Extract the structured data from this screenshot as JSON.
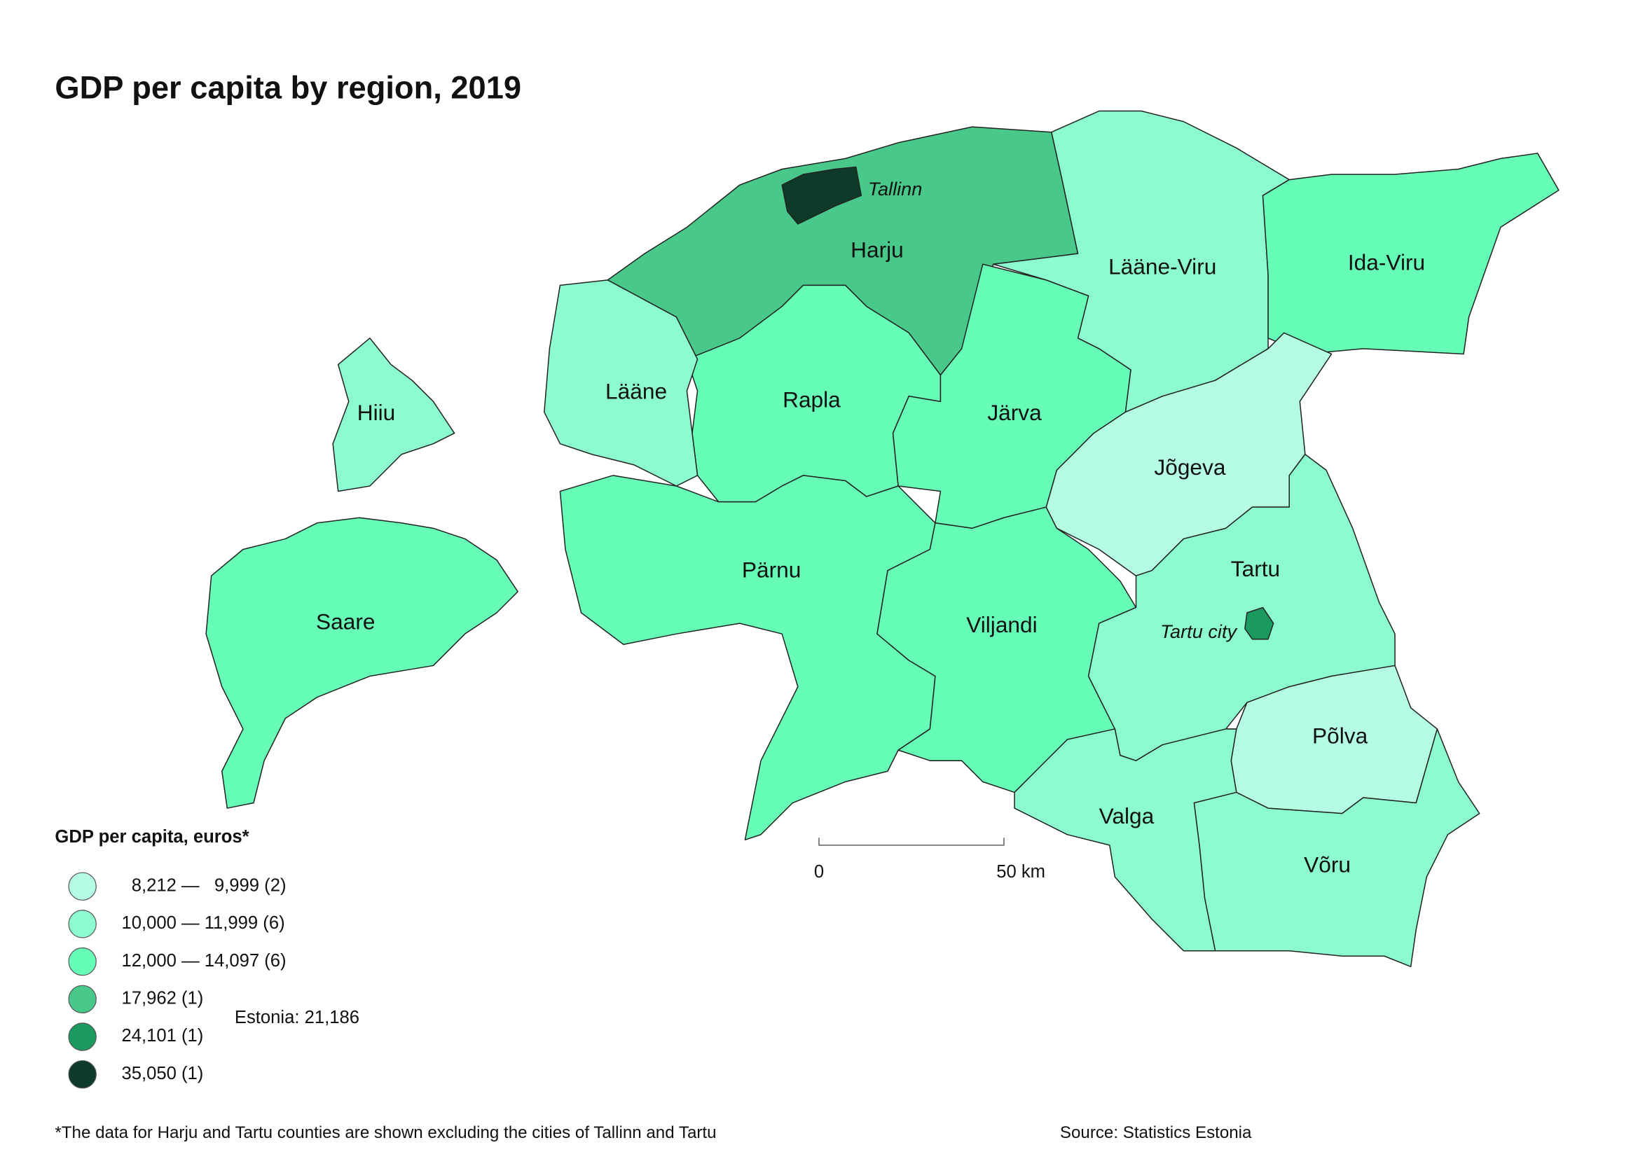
{
  "title": "GDP per capita by region, 2019",
  "regions": [
    {
      "name": "Harju",
      "color": "#48c98a"
    },
    {
      "name": "Lääne-Viru",
      "color": "#8cfcd0"
    },
    {
      "name": "Ida-Viru",
      "color": "#66fdb6"
    },
    {
      "name": "Rapla",
      "color": "#66fdb6"
    },
    {
      "name": "Järva",
      "color": "#66fdb6"
    },
    {
      "name": "Lääne",
      "color": "#8cfcd0"
    },
    {
      "name": "Hiiu",
      "color": "#8cfcd0"
    },
    {
      "name": "Saare",
      "color": "#66fdb6"
    },
    {
      "name": "Pärnu",
      "color": "#66fdb6"
    },
    {
      "name": "Viljandi",
      "color": "#66fdb6"
    },
    {
      "name": "Jõgeva",
      "color": "#b4fde3"
    },
    {
      "name": "Tartu",
      "color": "#8cfcd0"
    },
    {
      "name": "Põlva",
      "color": "#b4fde3"
    },
    {
      "name": "Valga",
      "color": "#8cfcd0"
    },
    {
      "name": "Võru",
      "color": "#8cfcd0"
    },
    {
      "name": "Tallinn",
      "color": "#0e3b29"
    },
    {
      "name": "Tartu city",
      "color": "#1a9a5e"
    }
  ],
  "legend": {
    "title": "GDP per capita, euros*",
    "items": [
      {
        "label": "  8,212 —   9,999 (2)",
        "color": "#b4fde3"
      },
      {
        "label": "10,000 — 11,999 (6)",
        "color": "#8cfcd0"
      },
      {
        "label": "12,000 — 14,097 (6)",
        "color": "#66fdb6"
      },
      {
        "label": "17,962 (1)",
        "color": "#48c98a"
      },
      {
        "label": "24,101 (1)",
        "color": "#1a9a5e"
      },
      {
        "label": "35,050 (1)",
        "color": "#0e3b29"
      }
    ],
    "total": "Estonia: 21,186"
  },
  "scale": {
    "start": "0",
    "end": "50 km"
  },
  "footnote": "*The data for Harju and Tartu counties are shown excluding the cities of Tallinn and Tartu",
  "source": "Source: Statistics Estonia"
}
